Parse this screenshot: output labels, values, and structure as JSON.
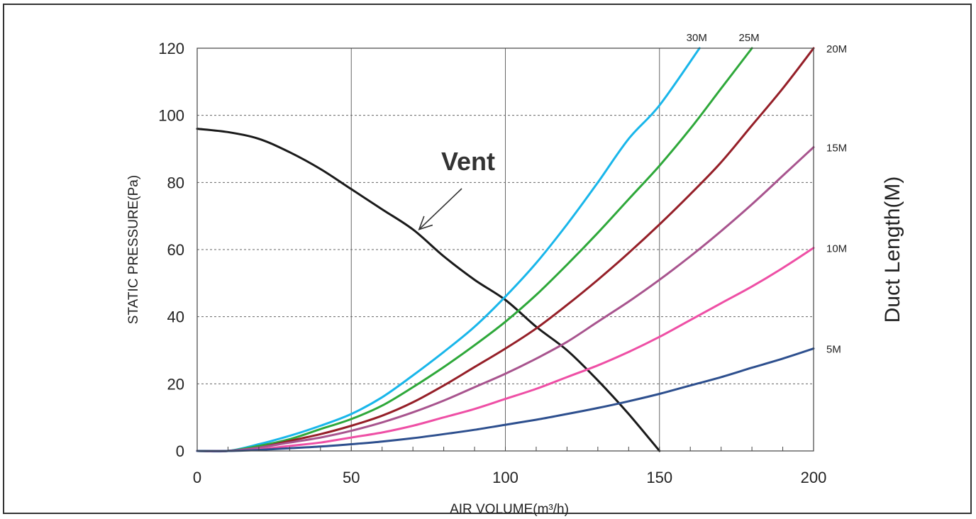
{
  "chart_data": {
    "type": "line",
    "xlabel": "AIR VOLUME(m³/h)",
    "ylabel": "STATIC PRESSURE(Pa)",
    "y2label": "Duct Length(M)",
    "xlim": [
      0,
      200
    ],
    "ylim": [
      0,
      120
    ],
    "xticks": [
      "0",
      "50",
      "100",
      "150",
      "200"
    ],
    "yticks": [
      "0",
      "20",
      "40",
      "60",
      "80",
      "100",
      "120"
    ],
    "grid": "vertical solid at x ticks, horizontal dashed at y ticks",
    "annotation": {
      "text": "Vent",
      "points_to": [
        72,
        66
      ]
    },
    "series": [
      {
        "name": "Vent",
        "color": "#1a1a1a",
        "points": [
          [
            0,
            96
          ],
          [
            10,
            95
          ],
          [
            20,
            93
          ],
          [
            30,
            89
          ],
          [
            40,
            84
          ],
          [
            50,
            78
          ],
          [
            60,
            72
          ],
          [
            70,
            66
          ],
          [
            80,
            58
          ],
          [
            90,
            51
          ],
          [
            100,
            45
          ],
          [
            110,
            37
          ],
          [
            120,
            30
          ],
          [
            130,
            21
          ],
          [
            140,
            11
          ],
          [
            150,
            0
          ]
        ]
      },
      {
        "name": "30M",
        "color": "#19b6ea",
        "points": [
          [
            0,
            0
          ],
          [
            10,
            0
          ],
          [
            20,
            2
          ],
          [
            30,
            4.5
          ],
          [
            40,
            7.5
          ],
          [
            50,
            11
          ],
          [
            60,
            16
          ],
          [
            70,
            22.5
          ],
          [
            80,
            29.5
          ],
          [
            90,
            37
          ],
          [
            100,
            46
          ],
          [
            110,
            56
          ],
          [
            120,
            67.5
          ],
          [
            130,
            80
          ],
          [
            140,
            93
          ],
          [
            150,
            103
          ],
          [
            163,
            120
          ]
        ]
      },
      {
        "name": "25M",
        "color": "#2ea83a",
        "points": [
          [
            0,
            0
          ],
          [
            10,
            0
          ],
          [
            20,
            1.5
          ],
          [
            30,
            3.5
          ],
          [
            40,
            6.5
          ],
          [
            50,
            9.5
          ],
          [
            60,
            13.5
          ],
          [
            70,
            19
          ],
          [
            80,
            25
          ],
          [
            90,
            31.5
          ],
          [
            100,
            38.5
          ],
          [
            110,
            46.5
          ],
          [
            120,
            55.5
          ],
          [
            130,
            65
          ],
          [
            140,
            75
          ],
          [
            150,
            85
          ],
          [
            160,
            96
          ],
          [
            170,
            108
          ],
          [
            180,
            120
          ]
        ]
      },
      {
        "name": "20M",
        "color": "#951f28",
        "points": [
          [
            0,
            0
          ],
          [
            10,
            0
          ],
          [
            20,
            1
          ],
          [
            30,
            3
          ],
          [
            40,
            5
          ],
          [
            50,
            7.5
          ],
          [
            60,
            10.5
          ],
          [
            70,
            14.5
          ],
          [
            80,
            19.5
          ],
          [
            90,
            25
          ],
          [
            100,
            30.5
          ],
          [
            110,
            36.5
          ],
          [
            120,
            43.5
          ],
          [
            130,
            51
          ],
          [
            140,
            59
          ],
          [
            150,
            67.5
          ],
          [
            160,
            76.5
          ],
          [
            170,
            86
          ],
          [
            180,
            97
          ],
          [
            190,
            108
          ],
          [
            200,
            120
          ]
        ]
      },
      {
        "name": "15M",
        "color": "#a8548e",
        "points": [
          [
            0,
            0
          ],
          [
            10,
            0
          ],
          [
            20,
            1
          ],
          [
            30,
            2.5
          ],
          [
            40,
            4
          ],
          [
            50,
            6
          ],
          [
            60,
            8.5
          ],
          [
            70,
            11.5
          ],
          [
            80,
            15
          ],
          [
            90,
            19
          ],
          [
            100,
            23
          ],
          [
            110,
            27.5
          ],
          [
            120,
            32.5
          ],
          [
            130,
            38.5
          ],
          [
            140,
            44.5
          ],
          [
            150,
            51
          ],
          [
            160,
            58
          ],
          [
            170,
            65.5
          ],
          [
            180,
            73.5
          ],
          [
            190,
            82
          ],
          [
            200,
            90.5
          ]
        ]
      },
      {
        "name": "10M",
        "color": "#ee4fa5",
        "points": [
          [
            0,
            0
          ],
          [
            10,
            0
          ],
          [
            20,
            0.5
          ],
          [
            30,
            1.5
          ],
          [
            40,
            2.5
          ],
          [
            50,
            4
          ],
          [
            60,
            5.5
          ],
          [
            70,
            7.5
          ],
          [
            80,
            10
          ],
          [
            90,
            12.5
          ],
          [
            100,
            15.5
          ],
          [
            110,
            18.5
          ],
          [
            120,
            22
          ],
          [
            130,
            25.5
          ],
          [
            140,
            29.5
          ],
          [
            150,
            34
          ],
          [
            160,
            39
          ],
          [
            170,
            44
          ],
          [
            180,
            49
          ],
          [
            190,
            54.5
          ],
          [
            200,
            60.5
          ]
        ]
      },
      {
        "name": "5M",
        "color": "#2d4f8e",
        "points": [
          [
            0,
            0
          ],
          [
            10,
            0
          ],
          [
            20,
            0.3
          ],
          [
            30,
            0.8
          ],
          [
            40,
            1.3
          ],
          [
            50,
            2
          ],
          [
            60,
            2.8
          ],
          [
            70,
            3.8
          ],
          [
            80,
            5
          ],
          [
            90,
            6.3
          ],
          [
            100,
            7.8
          ],
          [
            110,
            9.3
          ],
          [
            120,
            11
          ],
          [
            130,
            12.8
          ],
          [
            140,
            14.8
          ],
          [
            150,
            17
          ],
          [
            160,
            19.5
          ],
          [
            170,
            22
          ],
          [
            180,
            24.8
          ],
          [
            190,
            27.5
          ],
          [
            200,
            30.5
          ]
        ]
      }
    ]
  }
}
